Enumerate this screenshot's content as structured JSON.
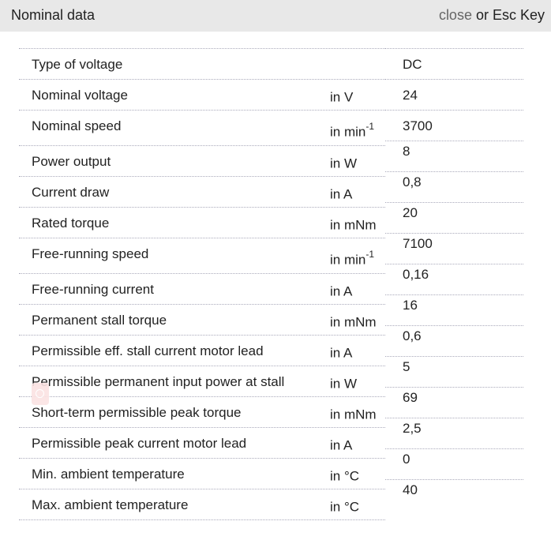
{
  "header": {
    "title": "Nominal data",
    "close_label": "close",
    "close_suffix": " or Esc Key"
  },
  "rows": [
    {
      "label": "Type of voltage",
      "unit": "",
      "sup": "",
      "value": "DC"
    },
    {
      "label": "Nominal voltage",
      "unit": "in V",
      "sup": "",
      "value": "24"
    },
    {
      "label": "Nominal speed",
      "unit": "in min",
      "sup": "-1",
      "value": "3700"
    },
    {
      "label": "Power output",
      "unit": "in W",
      "sup": "",
      "value": "8"
    },
    {
      "label": "Current draw",
      "unit": "in A",
      "sup": "",
      "value": "0,8"
    },
    {
      "label": "Rated torque",
      "unit": "in mNm",
      "sup": "",
      "value": "20"
    },
    {
      "label": "Free-running speed",
      "unit": "in min",
      "sup": "-1",
      "value": "7100"
    },
    {
      "label": "Free-running current",
      "unit": "in A",
      "sup": "",
      "value": "0,16"
    },
    {
      "label": "Permanent stall torque",
      "unit": "in mNm",
      "sup": "",
      "value": "16"
    },
    {
      "label": "Permissible eff. stall current motor lead",
      "unit": "in A",
      "sup": "",
      "value": "0,6"
    },
    {
      "label": "Permissible permanent input power at stall",
      "unit": "in W",
      "sup": "",
      "value": "5"
    },
    {
      "label": "Short-term permissible peak torque",
      "unit": "in mNm",
      "sup": "",
      "value": "69"
    },
    {
      "label": "Permissible peak current motor lead",
      "unit": "in A",
      "sup": "",
      "value": "2,5"
    },
    {
      "label": "Min. ambient temperature",
      "unit": "in °C",
      "sup": "",
      "value": "0"
    },
    {
      "label": "Max. ambient temperature",
      "unit": "in °C",
      "sup": "",
      "value": "40"
    }
  ],
  "icons": {
    "overlay": "magnifier-icon"
  }
}
